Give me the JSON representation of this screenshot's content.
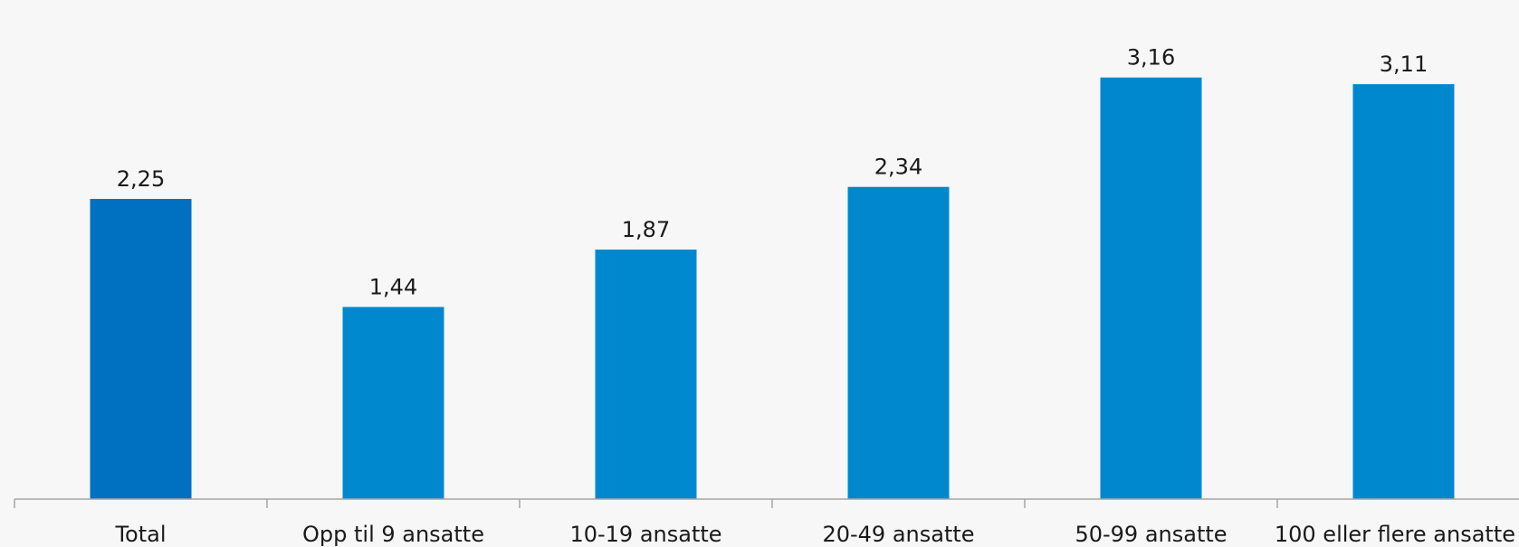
{
  "chart_data": {
    "type": "bar",
    "categories": [
      "Total",
      "Opp til 9 ansatte",
      "10-19 ansatte",
      "20-49 ansatte",
      "50-99 ansatte",
      "100 eller flere ansatte"
    ],
    "values": [
      2.25,
      1.44,
      1.87,
      2.34,
      3.16,
      3.11
    ],
    "data_labels": [
      "2,25",
      "1,44",
      "1,87",
      "2,34",
      "3,16",
      "3,11"
    ],
    "ylim": [
      0,
      3.47
    ],
    "grid": false,
    "legend": "none",
    "colors": {
      "highlight": "#0070c0",
      "default": "#0088cf"
    },
    "bar_colors": [
      "#0070c0",
      "#0088cf",
      "#0088cf",
      "#0088cf",
      "#0088cf",
      "#0088cf"
    ]
  }
}
